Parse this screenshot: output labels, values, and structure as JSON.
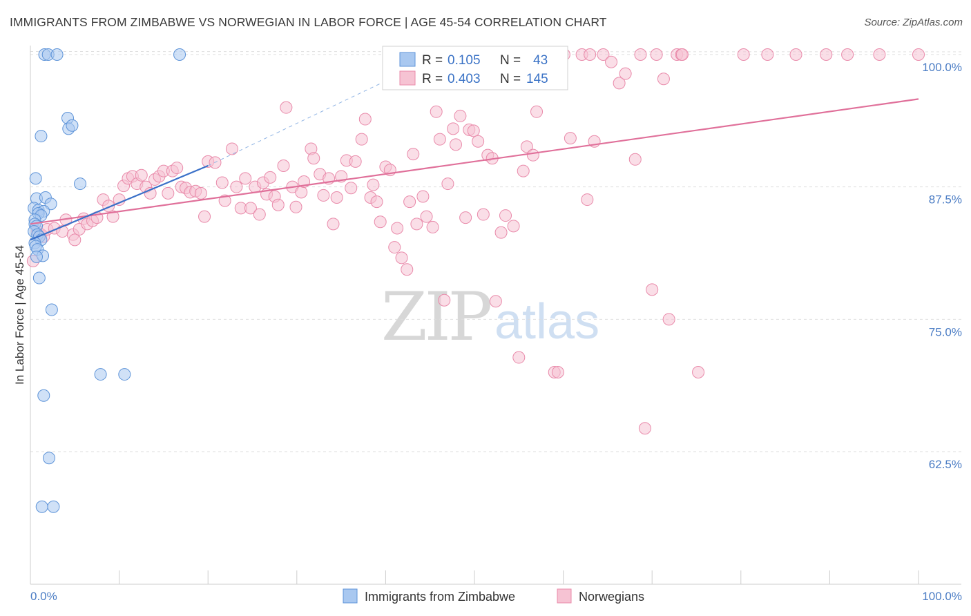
{
  "title": "IMMIGRANTS FROM ZIMBABWE VS NORWEGIAN IN LABOR FORCE | AGE 45-54 CORRELATION CHART",
  "source": "Source: ZipAtlas.com",
  "watermark": {
    "zip": "ZIP",
    "atlas": "atlas"
  },
  "legend": {
    "r_label": "R =",
    "n_label": "N =",
    "series": [
      {
        "name": "Immigrants from Zimbabwe",
        "r": "0.105",
        "n": "43"
      },
      {
        "name": "Norwegians",
        "r": "0.403",
        "n": "145"
      }
    ]
  },
  "colors": {
    "blue_fill": "#a9c8f0",
    "blue_stroke": "#5d93d8",
    "blue_line": "#3a70c8",
    "pink_fill": "#f6c3d3",
    "pink_stroke": "#e98aaa",
    "pink_line": "#e0709a",
    "axis_text": "#4a7cc4",
    "grid": "#dddddd"
  },
  "chart_data": {
    "type": "scatter",
    "title": "IMMIGRANTS FROM ZIMBABWE VS NORWEGIAN IN LABOR FORCE | AGE 45-54 CORRELATION CHART",
    "xlabel": "",
    "ylabel": "In Labor Force | Age 45-54",
    "xlim": [
      0,
      100
    ],
    "ylim": [
      50,
      102.5
    ],
    "x_tick_labels": [
      "0.0%",
      "100.0%"
    ],
    "y_ticks": [
      62.5,
      75.0,
      87.5,
      100.0
    ],
    "y_tick_labels": [
      "62.5%",
      "75.0%",
      "87.5%",
      "100.0%"
    ],
    "grid": true,
    "series": [
      {
        "name": "Immigrants from Zimbabwe",
        "r": 0.105,
        "n": 43,
        "trend": {
          "x0": 0,
          "y0": 82.5,
          "x1": 20,
          "y1": 89.5,
          "dashed_extension_to": [
            45,
            99.5
          ]
        },
        "points": [
          [
            1.6,
            100
          ],
          [
            2.0,
            100
          ],
          [
            3.0,
            100
          ],
          [
            16.8,
            100
          ],
          [
            4.2,
            94
          ],
          [
            4.3,
            93
          ],
          [
            4.7,
            93.3
          ],
          [
            1.2,
            92.3
          ],
          [
            0.6,
            88.3
          ],
          [
            5.6,
            87.8
          ],
          [
            0.7,
            86.4
          ],
          [
            1.7,
            86.5
          ],
          [
            2.3,
            85.9
          ],
          [
            0.4,
            85.5
          ],
          [
            0.9,
            85.3
          ],
          [
            1.5,
            85.2
          ],
          [
            0.9,
            85.0
          ],
          [
            1.2,
            84.8
          ],
          [
            0.5,
            84.4
          ],
          [
            0.5,
            84.0
          ],
          [
            0.7,
            83.8
          ],
          [
            0.4,
            83.3
          ],
          [
            0.8,
            83.0
          ],
          [
            1.0,
            82.8
          ],
          [
            1.2,
            82.5
          ],
          [
            0.5,
            82.2
          ],
          [
            0.6,
            81.9
          ],
          [
            0.8,
            81.6
          ],
          [
            1.4,
            81.0
          ],
          [
            0.7,
            80.9
          ],
          [
            1.0,
            78.9
          ],
          [
            2.4,
            75.9
          ],
          [
            7.9,
            69.8
          ],
          [
            10.6,
            69.8
          ],
          [
            1.5,
            67.8
          ],
          [
            2.1,
            61.9
          ],
          [
            1.3,
            57.3
          ],
          [
            2.6,
            57.3
          ]
        ]
      },
      {
        "name": "Norwegians",
        "r": 0.403,
        "n": 145,
        "trend": {
          "x0": 0,
          "y0": 84.0,
          "x1": 100,
          "y1": 95.8
        },
        "points": [
          [
            0.3,
            80.5
          ],
          [
            0.8,
            83.3
          ],
          [
            1.2,
            83.0
          ],
          [
            1.5,
            82.8
          ],
          [
            1.9,
            83.5
          ],
          [
            2.7,
            83.6
          ],
          [
            3.6,
            83.3
          ],
          [
            4.0,
            84.4
          ],
          [
            4.8,
            83.0
          ],
          [
            5.0,
            82.5
          ],
          [
            5.5,
            83.5
          ],
          [
            6.0,
            84.5
          ],
          [
            6.4,
            84.0
          ],
          [
            7.0,
            84.3
          ],
          [
            7.5,
            84.6
          ],
          [
            8.2,
            86.3
          ],
          [
            8.8,
            85.7
          ],
          [
            9.3,
            84.7
          ],
          [
            10.0,
            86.3
          ],
          [
            10.5,
            87.6
          ],
          [
            11.0,
            88.3
          ],
          [
            11.5,
            88.5
          ],
          [
            12.0,
            87.8
          ],
          [
            12.5,
            88.6
          ],
          [
            13.0,
            87.5
          ],
          [
            13.5,
            86.9
          ],
          [
            14.0,
            88.2
          ],
          [
            14.5,
            88.5
          ],
          [
            15.0,
            89.0
          ],
          [
            15.5,
            86.9
          ],
          [
            16.0,
            89.0
          ],
          [
            16.5,
            89.3
          ],
          [
            17.0,
            87.5
          ],
          [
            17.5,
            87.4
          ],
          [
            18.0,
            87.0
          ],
          [
            18.6,
            87.1
          ],
          [
            19.2,
            86.9
          ],
          [
            19.6,
            84.7
          ],
          [
            20.0,
            89.9
          ],
          [
            20.8,
            89.8
          ],
          [
            21.6,
            87.9
          ],
          [
            21.9,
            86.2
          ],
          [
            22.7,
            91.1
          ],
          [
            23.2,
            87.5
          ],
          [
            23.7,
            85.5
          ],
          [
            24.2,
            88.3
          ],
          [
            24.8,
            85.5
          ],
          [
            25.3,
            87.5
          ],
          [
            25.8,
            84.9
          ],
          [
            26.2,
            87.9
          ],
          [
            26.6,
            86.8
          ],
          [
            27.0,
            88.4
          ],
          [
            27.5,
            86.6
          ],
          [
            27.9,
            85.8
          ],
          [
            28.5,
            89.5
          ],
          [
            28.8,
            95.0
          ],
          [
            29.5,
            87.5
          ],
          [
            29.9,
            85.6
          ],
          [
            30.5,
            87.0
          ],
          [
            30.8,
            88.0
          ],
          [
            31.6,
            91.1
          ],
          [
            31.9,
            90.2
          ],
          [
            32.6,
            88.7
          ],
          [
            33.0,
            86.7
          ],
          [
            33.6,
            88.3
          ],
          [
            34.1,
            84.0
          ],
          [
            34.5,
            86.5
          ],
          [
            35.0,
            88.5
          ],
          [
            35.6,
            90.0
          ],
          [
            36.1,
            87.4
          ],
          [
            36.6,
            89.9
          ],
          [
            37.3,
            92.0
          ],
          [
            37.7,
            93.9
          ],
          [
            38.3,
            86.5
          ],
          [
            38.6,
            87.7
          ],
          [
            39.0,
            86.1
          ],
          [
            39.4,
            84.2
          ],
          [
            40.0,
            89.4
          ],
          [
            40.5,
            89.1
          ],
          [
            41.0,
            81.8
          ],
          [
            41.3,
            83.6
          ],
          [
            41.8,
            80.8
          ],
          [
            42.4,
            79.7
          ],
          [
            42.7,
            86.1
          ],
          [
            43.1,
            90.6
          ],
          [
            43.5,
            84.0
          ],
          [
            44.2,
            86.6
          ],
          [
            44.6,
            84.7
          ],
          [
            45.3,
            83.7
          ],
          [
            45.7,
            94.6
          ],
          [
            46.1,
            92.0
          ],
          [
            46.6,
            76.8
          ],
          [
            47.0,
            87.8
          ],
          [
            47.6,
            93.0
          ],
          [
            47.9,
            91.5
          ],
          [
            48.4,
            94.2
          ],
          [
            49.0,
            84.6
          ],
          [
            49.4,
            92.9
          ],
          [
            49.9,
            92.8
          ],
          [
            50.4,
            91.8
          ],
          [
            51.0,
            84.9
          ],
          [
            51.5,
            90.5
          ],
          [
            52.0,
            90.2
          ],
          [
            52.4,
            76.7
          ],
          [
            53.0,
            83.2
          ],
          [
            53.5,
            84.8
          ],
          [
            54.4,
            83.8
          ],
          [
            55.0,
            71.4
          ],
          [
            55.5,
            89.0
          ],
          [
            55.9,
            91.3
          ],
          [
            56.6,
            90.5
          ],
          [
            57.0,
            94.6
          ],
          [
            57.7,
            100
          ],
          [
            59.0,
            70.0
          ],
          [
            59.4,
            70.0
          ],
          [
            60.1,
            100
          ],
          [
            60.8,
            92.1
          ],
          [
            62.1,
            100
          ],
          [
            62.7,
            86.3
          ],
          [
            63.0,
            100
          ],
          [
            63.5,
            91.8
          ],
          [
            64.5,
            100
          ],
          [
            65.4,
            99.3
          ],
          [
            66.3,
            97.3
          ],
          [
            67.0,
            98.2
          ],
          [
            68.1,
            90.1
          ],
          [
            68.7,
            100
          ],
          [
            69.2,
            64.7
          ],
          [
            70.0,
            77.8
          ],
          [
            70.5,
            100
          ],
          [
            71.3,
            97.7
          ],
          [
            71.9,
            75.0
          ],
          [
            72.8,
            100
          ],
          [
            73.3,
            100
          ],
          [
            75.2,
            70.0
          ],
          [
            80.3,
            100
          ],
          [
            83.0,
            100
          ],
          [
            86.2,
            100
          ],
          [
            89.6,
            100
          ],
          [
            92.0,
            100
          ],
          [
            95.6,
            100
          ],
          [
            100,
            100
          ],
          [
            73.4,
            100
          ],
          [
            55.0,
            100
          ]
        ]
      }
    ]
  }
}
